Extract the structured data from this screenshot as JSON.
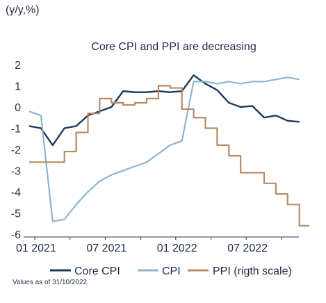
{
  "unit_label": "(y/y,%)",
  "footnote": "Values as of 31/10/2022",
  "chart_data": {
    "type": "line",
    "title": "Core CPI and PPI are decreasing",
    "xlabel": "",
    "ylabel": "(y/y,%)",
    "ylim": [
      -6,
      2
    ],
    "yticks": [
      2,
      1,
      0,
      -1,
      -2,
      -3,
      -4,
      -5,
      -6
    ],
    "xticks": [
      "01 2021",
      "07 2021",
      "01 2022",
      "07 2022"
    ],
    "xtick_months": [
      1,
      7,
      13,
      19
    ],
    "legend_position": "bottom",
    "grid": false,
    "series": [
      {
        "name": "Core CPI",
        "color": "#1b3a5c",
        "x": [
          0,
          1,
          2,
          3,
          4,
          5,
          6,
          7,
          8,
          9,
          10,
          11,
          12,
          13,
          14,
          15,
          16,
          17,
          18,
          19,
          20,
          21,
          22,
          23
        ],
        "values": [
          -0.9,
          -1.0,
          -1.8,
          -1.0,
          -0.9,
          -0.4,
          -0.2,
          0.0,
          0.75,
          0.7,
          0.7,
          0.75,
          0.7,
          0.75,
          1.5,
          1.1,
          0.8,
          0.2,
          0.0,
          0.05,
          -0.5,
          -0.4,
          -0.65,
          -0.7
        ]
      },
      {
        "name": "CPI",
        "color": "#8fb3cf",
        "x": [
          0,
          1,
          2,
          3,
          4,
          5,
          6,
          7,
          8,
          9,
          10,
          11,
          12,
          13,
          14,
          15,
          16,
          17,
          18,
          19,
          20,
          21,
          22,
          23
        ],
        "values": [
          -0.2,
          -0.4,
          -5.4,
          -5.3,
          -4.6,
          -4.0,
          -3.5,
          -3.2,
          -3.0,
          -2.8,
          -2.6,
          -2.2,
          -1.8,
          -1.6,
          1.2,
          1.2,
          1.1,
          1.2,
          1.1,
          1.2,
          1.2,
          1.3,
          1.4,
          1.3
        ]
      },
      {
        "name": "PPI (rigth scale)",
        "color": "#b98a62",
        "step": true,
        "x": [
          0,
          1,
          2,
          3,
          4,
          5,
          6,
          7,
          8,
          9,
          10,
          11,
          12,
          13,
          14,
          15,
          16,
          17,
          18,
          19,
          20,
          21,
          22,
          23
        ],
        "values": [
          -2.6,
          -2.6,
          -2.6,
          -2.1,
          -1.2,
          -0.3,
          0.4,
          0.2,
          0.1,
          0.2,
          0.4,
          1.0,
          0.9,
          -0.1,
          -0.5,
          -1.0,
          -1.8,
          -2.3,
          -3.1,
          -3.1,
          -3.6,
          -4.1,
          -4.6,
          -5.6
        ]
      }
    ]
  }
}
